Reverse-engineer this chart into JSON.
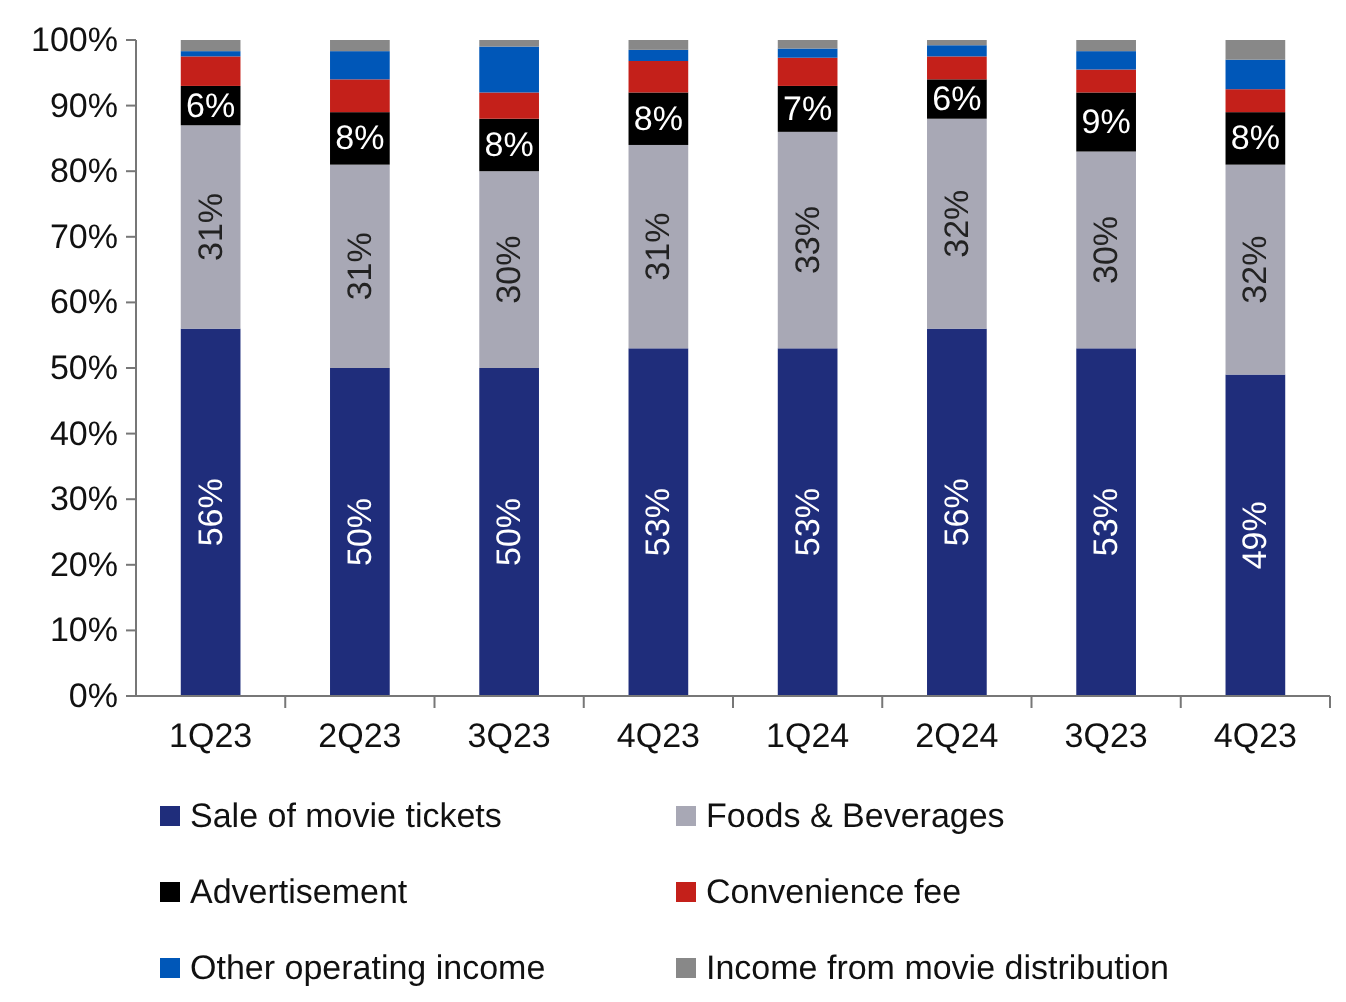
{
  "chart_data": {
    "type": "bar",
    "stacked": true,
    "categories": [
      "1Q23",
      "2Q23",
      "3Q23",
      "4Q23",
      "1Q24",
      "2Q24",
      "3Q23",
      "4Q23"
    ],
    "series": [
      {
        "name": "Sale of movie tickets",
        "color": "#1f2d7b",
        "values": [
          56,
          50,
          50,
          53,
          53,
          56,
          53,
          49
        ],
        "value_labels": [
          "56%",
          "50%",
          "50%",
          "53%",
          "53%",
          "56%",
          "53%",
          "49%"
        ]
      },
      {
        "name": "Foods & Beverages",
        "color": "#a8a8b5",
        "values": [
          31,
          31,
          30,
          31,
          33,
          32,
          30,
          32
        ],
        "value_labels": [
          "31%",
          "31%",
          "30%",
          "31%",
          "33%",
          "32%",
          "30%",
          "32%"
        ]
      },
      {
        "name": "Advertisement",
        "color": "#000000",
        "values": [
          6,
          8,
          8,
          8,
          7,
          6,
          9,
          8
        ],
        "value_labels": [
          "6%",
          "8%",
          "8%",
          "8%",
          "7%",
          "6%",
          "9%",
          "8%"
        ]
      },
      {
        "name": "Convenience fee",
        "color": "#c4201a",
        "values": [
          4.5,
          5,
          4,
          4.8,
          4.3,
          3.5,
          3.5,
          3.5
        ]
      },
      {
        "name": "Other operating income",
        "color": "#0057b8",
        "values": [
          0.8,
          4.3,
          7,
          1.7,
          1.4,
          1.7,
          2.8,
          4.5
        ]
      },
      {
        "name": "Income from movie distribution",
        "color": "#888888",
        "values": [
          1.7,
          1.7,
          1,
          1.5,
          1.3,
          0.8,
          1.7,
          3
        ]
      }
    ],
    "ylim": [
      0,
      100
    ],
    "yticks": [
      {
        "value": 0,
        "label": "0%"
      },
      {
        "value": 10,
        "label": "10%"
      },
      {
        "value": 20,
        "label": "20%"
      },
      {
        "value": 30,
        "label": "30%"
      },
      {
        "value": 40,
        "label": "40%"
      },
      {
        "value": 50,
        "label": "50%"
      },
      {
        "value": 60,
        "label": "60%"
      },
      {
        "value": 70,
        "label": "70%"
      },
      {
        "value": 80,
        "label": "80%"
      },
      {
        "value": 90,
        "label": "90%"
      },
      {
        "value": 100,
        "label": "100%"
      }
    ],
    "grid": false,
    "legend": "bottom"
  }
}
